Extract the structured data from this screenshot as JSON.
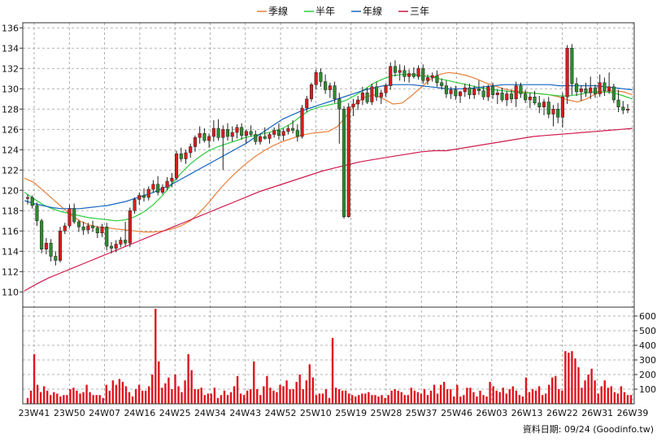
{
  "chart_data": {
    "type": "candlestick",
    "legend": [
      {
        "name": "季線",
        "color": "#e8803a"
      },
      {
        "name": "半年",
        "color": "#2ecc40"
      },
      {
        "name": "年線",
        "color": "#1565c0"
      },
      {
        "name": "三年",
        "color": "#d0194d"
      }
    ],
    "price_axis": {
      "ylim": [
        108.5,
        136.5
      ],
      "ticks": [
        110,
        112,
        114,
        116,
        118,
        120,
        122,
        124,
        126,
        128,
        130,
        132,
        134,
        136
      ]
    },
    "volume_axis": {
      "ylim": [
        0,
        650
      ],
      "ticks": [
        100,
        200,
        300,
        400,
        500,
        600
      ]
    },
    "x_ticks": [
      "23W41",
      "23W50",
      "24W07",
      "24W16",
      "24W25",
      "24W34",
      "24W43",
      "24W52",
      "25W10",
      "25W19",
      "25W28",
      "25W37",
      "25W46",
      "26W03",
      "26W13",
      "26W22",
      "26W31",
      "26W39"
    ],
    "footer": "資料日期: 09/24 (Goodinfo.tw)",
    "colors": {
      "up": "#d81c1c",
      "down": "#2e8b2e",
      "volume": "#e0141e",
      "grid": "#9a9a9a",
      "axis": "#000000"
    },
    "candles": [
      [
        119.2,
        119.6,
        118.6,
        119.3
      ],
      [
        119.3,
        119.5,
        118.2,
        118.5
      ],
      [
        118.5,
        118.8,
        116.5,
        117.0
      ],
      [
        117.0,
        117.2,
        113.8,
        114.2
      ],
      [
        114.2,
        115.3,
        113.7,
        114.8
      ],
      [
        114.8,
        115.2,
        113.0,
        113.5
      ],
      [
        113.5,
        114.0,
        112.6,
        113.1
      ],
      [
        113.1,
        116.4,
        112.9,
        116.0
      ],
      [
        116.0,
        116.8,
        115.7,
        116.5
      ],
      [
        116.5,
        118.6,
        116.3,
        118.2
      ],
      [
        118.2,
        118.7,
        116.7,
        116.9
      ],
      [
        116.9,
        117.1,
        115.9,
        116.4
      ],
      [
        116.4,
        116.9,
        115.6,
        116.1
      ],
      [
        116.1,
        116.8,
        115.7,
        116.5
      ],
      [
        116.5,
        117.0,
        115.9,
        116.3
      ],
      [
        116.3,
        116.5,
        115.3,
        115.8
      ],
      [
        115.8,
        116.7,
        115.4,
        116.4
      ],
      [
        116.4,
        116.8,
        114.1,
        114.5
      ],
      [
        114.5,
        114.9,
        113.8,
        114.3
      ],
      [
        114.3,
        115.1,
        113.9,
        114.7
      ],
      [
        114.7,
        115.4,
        114.4,
        115.1
      ],
      [
        115.1,
        116.9,
        114.5,
        114.8
      ],
      [
        114.8,
        118.3,
        114.4,
        118.0
      ],
      [
        118.0,
        119.3,
        117.7,
        119.1
      ],
      [
        119.1,
        119.8,
        118.6,
        119.5
      ],
      [
        119.5,
        120.2,
        118.9,
        119.3
      ],
      [
        119.3,
        120.4,
        119.0,
        120.1
      ],
      [
        120.1,
        121.0,
        119.8,
        120.6
      ],
      [
        120.6,
        121.4,
        119.5,
        119.8
      ],
      [
        119.8,
        120.6,
        119.6,
        120.3
      ],
      [
        120.3,
        121.3,
        120.0,
        120.9
      ],
      [
        120.9,
        121.7,
        120.3,
        121.2
      ],
      [
        121.2,
        123.9,
        121.0,
        123.6
      ],
      [
        123.6,
        124.2,
        122.8,
        123.1
      ],
      [
        123.1,
        124.0,
        122.6,
        123.7
      ],
      [
        123.7,
        124.6,
        123.2,
        124.3
      ],
      [
        124.3,
        125.4,
        123.8,
        125.2
      ],
      [
        125.2,
        126.3,
        124.6,
        125.6
      ],
      [
        125.6,
        126.1,
        124.7,
        124.9
      ],
      [
        124.9,
        125.6,
        124.2,
        125.3
      ],
      [
        125.3,
        126.9,
        124.8,
        126.1
      ],
      [
        126.1,
        127.0,
        124.9,
        125.2
      ],
      [
        125.2,
        126.4,
        122.0,
        126.0
      ],
      [
        126.0,
        126.6,
        124.9,
        125.3
      ],
      [
        125.3,
        126.3,
        124.8,
        125.7
      ],
      [
        125.7,
        126.5,
        125.1,
        126.2
      ],
      [
        126.2,
        126.6,
        125.0,
        125.4
      ],
      [
        125.4,
        126.0,
        124.6,
        125.8
      ],
      [
        125.8,
        126.4,
        125.3,
        125.5
      ],
      [
        125.5,
        125.9,
        124.5,
        124.8
      ],
      [
        124.8,
        125.6,
        124.5,
        125.3
      ],
      [
        125.3,
        126.2,
        125.0,
        125.1
      ],
      [
        125.1,
        125.7,
        124.6,
        125.5
      ],
      [
        125.5,
        126.2,
        125.2,
        125.9
      ],
      [
        125.9,
        126.6,
        125.0,
        125.4
      ],
      [
        125.4,
        126.1,
        124.9,
        125.8
      ],
      [
        125.8,
        126.4,
        125.5,
        126.1
      ],
      [
        126.1,
        126.9,
        125.6,
        125.9
      ],
      [
        125.9,
        126.5,
        124.8,
        125.3
      ],
      [
        125.3,
        128.4,
        125.1,
        128.1
      ],
      [
        128.1,
        129.3,
        127.7,
        129.0
      ],
      [
        129.0,
        130.6,
        128.7,
        130.4
      ],
      [
        130.4,
        131.9,
        129.9,
        131.6
      ],
      [
        131.6,
        132.0,
        130.2,
        130.7
      ],
      [
        130.7,
        131.4,
        129.5,
        129.9
      ],
      [
        129.9,
        130.6,
        129.1,
        130.3
      ],
      [
        130.3,
        130.7,
        128.6,
        129.0
      ],
      [
        129.0,
        129.6,
        124.6,
        128.0
      ],
      [
        128.0,
        128.3,
        117.2,
        117.4
      ],
      [
        117.4,
        128.6,
        117.3,
        128.2
      ],
      [
        128.2,
        129.0,
        127.3,
        128.5
      ],
      [
        128.5,
        129.3,
        127.9,
        128.9
      ],
      [
        128.9,
        130.2,
        128.4,
        129.6
      ],
      [
        129.6,
        130.1,
        128.5,
        128.7
      ],
      [
        128.7,
        130.5,
        128.4,
        130.2
      ],
      [
        130.2,
        130.7,
        128.8,
        129.2
      ],
      [
        129.2,
        129.9,
        128.5,
        129.6
      ],
      [
        129.6,
        130.5,
        129.2,
        130.3
      ],
      [
        130.3,
        132.6,
        129.9,
        132.2
      ],
      [
        132.2,
        132.8,
        131.2,
        131.6
      ],
      [
        131.6,
        132.4,
        130.8,
        131.8
      ],
      [
        131.8,
        132.3,
        130.7,
        131.2
      ],
      [
        131.2,
        131.9,
        130.6,
        131.5
      ],
      [
        131.5,
        132.1,
        131.0,
        131.2
      ],
      [
        131.2,
        132.3,
        130.9,
        132.0
      ],
      [
        132.0,
        132.4,
        130.5,
        130.8
      ],
      [
        130.8,
        131.4,
        130.4,
        131.1
      ],
      [
        131.1,
        131.6,
        130.7,
        131.3
      ],
      [
        131.3,
        131.8,
        130.2,
        130.6
      ],
      [
        130.6,
        131.0,
        129.9,
        130.3
      ],
      [
        130.3,
        130.8,
        129.1,
        129.5
      ],
      [
        129.5,
        130.2,
        129.0,
        129.9
      ],
      [
        129.9,
        130.3,
        128.9,
        129.3
      ],
      [
        129.3,
        129.8,
        128.6,
        129.7
      ],
      [
        129.7,
        130.5,
        129.2,
        130.1
      ],
      [
        130.1,
        130.5,
        129.0,
        129.4
      ],
      [
        129.4,
        130.3,
        129.0,
        130.0
      ],
      [
        130.0,
        130.8,
        129.4,
        129.8
      ],
      [
        129.8,
        130.3,
        128.9,
        129.2
      ],
      [
        129.2,
        130.4,
        128.8,
        130.2
      ],
      [
        130.2,
        130.6,
        129.0,
        129.4
      ],
      [
        129.4,
        129.9,
        128.5,
        129.6
      ],
      [
        129.6,
        130.1,
        128.7,
        128.9
      ],
      [
        128.9,
        129.8,
        128.3,
        129.5
      ],
      [
        129.5,
        129.9,
        128.6,
        129.0
      ],
      [
        129.0,
        130.7,
        128.2,
        130.3
      ],
      [
        130.3,
        130.6,
        129.1,
        129.5
      ],
      [
        129.5,
        129.9,
        128.6,
        128.9
      ],
      [
        128.9,
        129.6,
        128.1,
        129.2
      ],
      [
        129.2,
        129.8,
        128.4,
        128.6
      ],
      [
        128.6,
        129.3,
        127.6,
        128.2
      ],
      [
        128.2,
        129.0,
        127.4,
        128.7
      ],
      [
        128.7,
        129.2,
        127.1,
        127.5
      ],
      [
        127.5,
        128.4,
        126.3,
        128.0
      ],
      [
        128.0,
        128.6,
        126.6,
        127.2
      ],
      [
        127.2,
        129.6,
        126.2,
        129.2
      ],
      [
        129.2,
        134.3,
        128.5,
        134.0
      ],
      [
        134.0,
        134.4,
        129.4,
        130.5
      ],
      [
        130.5,
        131.1,
        129.3,
        129.7
      ],
      [
        129.7,
        130.3,
        128.8,
        130.0
      ],
      [
        130.0,
        130.6,
        129.2,
        129.6
      ],
      [
        129.6,
        131.2,
        129.0,
        130.1
      ],
      [
        130.1,
        130.4,
        129.1,
        129.5
      ],
      [
        129.5,
        131.4,
        129.2,
        130.6
      ],
      [
        130.6,
        131.1,
        129.3,
        129.8
      ],
      [
        129.8,
        131.6,
        129.5,
        130.2
      ],
      [
        130.2,
        130.5,
        128.6,
        128.9
      ],
      [
        128.9,
        129.9,
        127.7,
        128.2
      ],
      [
        128.2,
        128.8,
        127.5,
        127.9
      ],
      [
        127.9,
        128.5,
        127.6,
        128.0
      ]
    ],
    "volumes": [
      40,
      90,
      340,
      130,
      80,
      120,
      90,
      60,
      80,
      70,
      50,
      60,
      60,
      100,
      110,
      90,
      70,
      80,
      130,
      80,
      60,
      60,
      60,
      40,
      130,
      90,
      160,
      130,
      170,
      150,
      120,
      80,
      50,
      100,
      130,
      90,
      90,
      120,
      200,
      650,
      290,
      110,
      140,
      180,
      100,
      200,
      120,
      80,
      160,
      340,
      230,
      100,
      100,
      110,
      60,
      70,
      70,
      110,
      40,
      60,
      90,
      60,
      80,
      120,
      190,
      70,
      60,
      90,
      100,
      290,
      100,
      60,
      120,
      190,
      110,
      90,
      80,
      130,
      120,
      160,
      100,
      100,
      150,
      200,
      100,
      160,
      270,
      180,
      60,
      70,
      70,
      100,
      40,
      450,
      110,
      100,
      90,
      90,
      70,
      60,
      50,
      60,
      70,
      70,
      80,
      60,
      60,
      50,
      60,
      40,
      60,
      90,
      100,
      90,
      80,
      60,
      60,
      110,
      90,
      80,
      70,
      100,
      60,
      90,
      130,
      70,
      130,
      150,
      100,
      100,
      50,
      130,
      50,
      60,
      110,
      110,
      80,
      50,
      90,
      60,
      50,
      150,
      120,
      90,
      80,
      110,
      70,
      100,
      120,
      90,
      60,
      50,
      180,
      80,
      100,
      90,
      120,
      60,
      70,
      130,
      180,
      190,
      100,
      90,
      360,
      350,
      360,
      310,
      250,
      110,
      160,
      200,
      240,
      160,
      70,
      120,
      160,
      110,
      120,
      80,
      70,
      120,
      80,
      60,
      60
    ],
    "ma_seeds": {
      "season": [
        121.2,
        120.8,
        120.0,
        119.2,
        118.4,
        117.6,
        117.0,
        116.6,
        116.4,
        116.3,
        116.2,
        116.1,
        116.0,
        115.9,
        115.9,
        116.0,
        116.2,
        116.5,
        117.0,
        117.8,
        118.8,
        119.9,
        120.9,
        121.8,
        122.6,
        123.3,
        123.9,
        124.4,
        124.8,
        125.1,
        125.4,
        125.6,
        125.7,
        125.8,
        126.3,
        127.4,
        128.6,
        129.2,
        129.4,
        129.0,
        128.5,
        128.6,
        129.3,
        130.1,
        130.9,
        131.4,
        131.6,
        131.5,
        131.3,
        131.0,
        130.6,
        130.3,
        130.0,
        129.8,
        129.7,
        129.6,
        129.5,
        129.4,
        129.2,
        128.9,
        128.7,
        129.0,
        129.5,
        129.7,
        129.8,
        129.7,
        129.4
      ],
      "half": [
        119.8,
        119.2,
        118.6,
        118.2,
        117.9,
        117.7,
        117.5,
        117.3,
        117.2,
        117.1,
        117.0,
        117.1,
        117.4,
        117.9,
        118.6,
        119.5,
        120.6,
        121.7,
        122.6,
        123.3,
        123.9,
        124.3,
        124.6,
        124.9,
        125.2,
        125.4,
        125.6,
        125.8,
        126.1,
        126.6,
        127.3,
        127.9,
        128.2,
        128.4,
        128.6,
        128.9,
        129.4,
        130.0,
        130.6,
        131.0,
        131.3,
        131.4,
        131.4,
        131.3,
        131.2,
        131.0,
        130.8,
        130.6,
        130.4,
        130.2,
        130.0,
        129.9,
        129.8,
        129.7,
        129.6,
        129.6,
        129.5,
        129.4,
        129.3,
        129.3,
        129.4,
        129.6,
        129.7,
        129.7,
        129.6,
        129.3,
        129.0
      ],
      "year": [
        119.0,
        118.7,
        118.5,
        118.3,
        118.2,
        118.2,
        118.2,
        118.3,
        118.4,
        118.5,
        118.7,
        118.9,
        119.2,
        119.5,
        119.8,
        120.2,
        120.6,
        121.1,
        121.6,
        122.1,
        122.6,
        123.1,
        123.6,
        124.1,
        124.6,
        125.2,
        125.8,
        126.4,
        127.0,
        127.4,
        127.8,
        128.1,
        128.4,
        128.7,
        129.0,
        129.3,
        129.6,
        129.9,
        130.1,
        130.3,
        130.4,
        130.4,
        130.4,
        130.3,
        130.2,
        130.1,
        130.0,
        130.0,
        130.0,
        130.1,
        130.2,
        130.3,
        130.4,
        130.4,
        130.4,
        130.4,
        130.4,
        130.4,
        130.3,
        130.3,
        130.3,
        130.3,
        130.3,
        130.2,
        130.1,
        130.0,
        129.9
      ],
      "three": [
        110.1,
        110.8,
        111.4,
        111.9,
        112.4,
        112.9,
        113.4,
        113.9,
        114.4,
        114.9,
        115.4,
        115.9,
        116.4,
        116.9,
        117.4,
        117.9,
        118.4,
        118.9,
        119.4,
        119.9,
        120.3,
        120.7,
        121.1,
        121.5,
        121.9,
        122.2,
        122.5,
        122.8,
        123.0,
        123.2,
        123.4,
        123.6,
        123.8,
        123.9,
        123.9,
        124.1,
        124.3,
        124.5,
        124.7,
        124.9,
        125.1,
        125.3,
        125.4,
        125.5,
        125.6,
        125.7,
        125.8,
        125.9,
        126.0,
        126.1
      ]
    }
  }
}
